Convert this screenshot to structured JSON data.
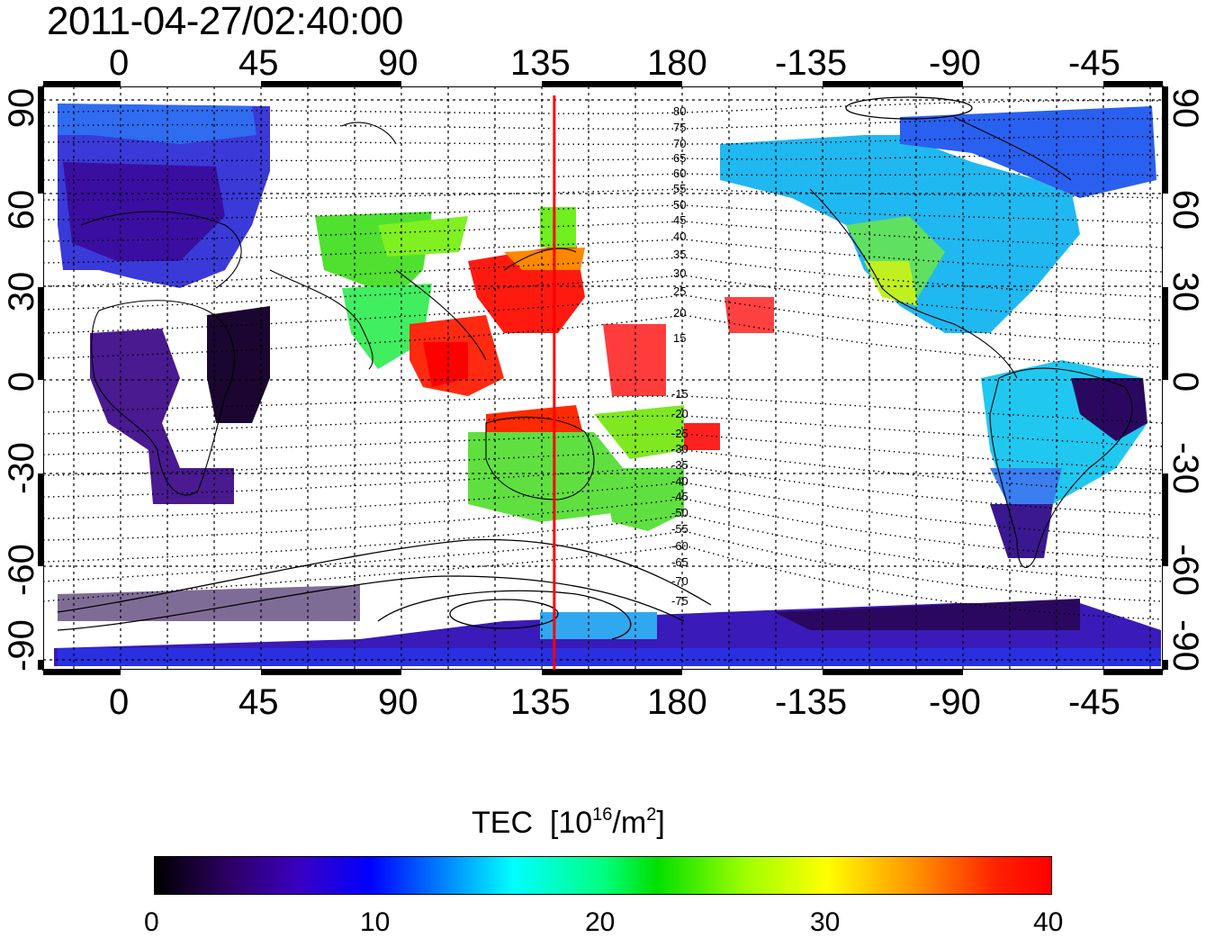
{
  "title": "2011-04-27/02:40:00",
  "lon_ticks": [
    "0",
    "45",
    "90",
    "135",
    "180",
    "-135",
    "-90",
    "-45"
  ],
  "lat_ticks": [
    "90",
    "60",
    "30",
    "0",
    "-30",
    "-60",
    "-90"
  ],
  "contour_labels_north": [
    "80",
    "75",
    "70",
    "65",
    "60",
    "55",
    "50",
    "45",
    "40",
    "35",
    "30",
    "25",
    "20",
    "15"
  ],
  "contour_labels_south": [
    "-15",
    "-20",
    "-25",
    "-30",
    "-35",
    "-40",
    "-45",
    "-50",
    "-55",
    "-60",
    "-65",
    "-70",
    "-75"
  ],
  "marker_longitude": 139,
  "colorbar": {
    "label": "TEC",
    "unit_prefix": "[10",
    "unit_exp": "16",
    "unit_mid": "/m",
    "unit_exp2": "2",
    "unit_end": "]",
    "ticks": [
      "0",
      "10",
      "20",
      "30",
      "40"
    ],
    "min": 0,
    "max": 40
  },
  "colors": {
    "marker_line": "#ff0000",
    "low": "#000000",
    "mid": "#00ff00",
    "high": "#ff0000"
  }
}
